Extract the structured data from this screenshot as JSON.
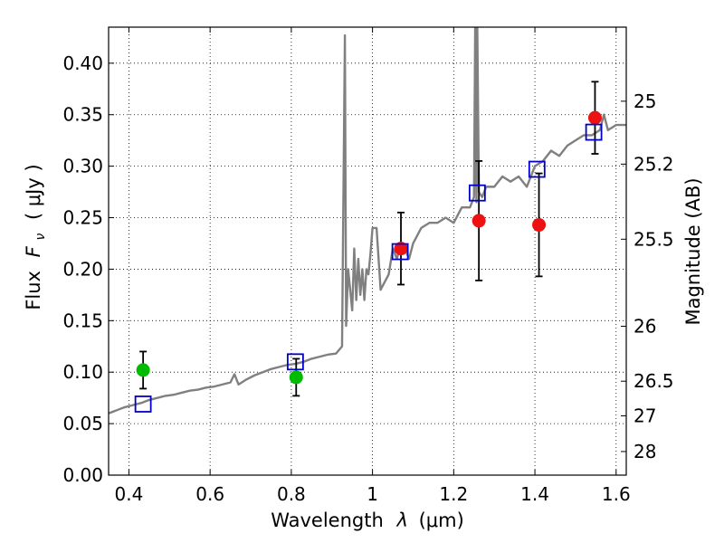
{
  "chart_data": {
    "type": "scatter",
    "xlabel_text": "Wavelength",
    "xlabel_symbol": "λ",
    "xlabel_unit": "(μm)",
    "ylabel_text": "Flux",
    "ylabel_symbol": "F",
    "ylabel_sub": "ν",
    "ylabel_unit": "( μJy )",
    "y2label": "Magnitude (AB)",
    "xlim": [
      0.35,
      1.625
    ],
    "ylim": [
      0.0,
      0.435
    ],
    "x_ticks": [
      0.4,
      0.6,
      0.8,
      1.0,
      1.2,
      1.4,
      1.6
    ],
    "x_tick_labels": [
      "0.4",
      "0.6",
      "0.8",
      "1",
      "1.2",
      "1.4",
      "1.6"
    ],
    "y_ticks": [
      0.0,
      0.05,
      0.1,
      0.15,
      0.2,
      0.25,
      0.3,
      0.35,
      0.4
    ],
    "y_tick_labels": [
      "0.00",
      "0.05",
      "0.10",
      "0.15",
      "0.20",
      "0.25",
      "0.30",
      "0.35",
      "0.40"
    ],
    "mag_ticks": [
      25,
      25.2,
      25.5,
      26,
      26.5,
      27,
      28
    ],
    "mag_tick_labels": [
      "25",
      "25.2",
      "25.5",
      "26",
      "26.5",
      "27",
      "28"
    ],
    "grid": true,
    "colors": {
      "spectrum": "#808080",
      "green_points": "#00bb00",
      "red_points": "#ee1111",
      "model_squares": "#0000cc",
      "errorbars": "#000000"
    },
    "series": [
      {
        "kind": "line",
        "x": [
          0.35,
          0.37,
          0.39,
          0.41,
          0.43,
          0.45,
          0.47,
          0.49,
          0.51,
          0.53,
          0.55,
          0.57,
          0.59,
          0.61,
          0.63,
          0.65,
          0.66,
          0.67,
          0.69,
          0.71,
          0.73,
          0.75,
          0.77,
          0.79,
          0.81,
          0.83,
          0.85,
          0.87,
          0.89,
          0.91,
          0.925,
          0.932,
          0.935,
          0.94,
          0.95,
          0.955,
          0.96,
          0.965,
          0.97,
          0.975,
          0.98,
          0.985,
          0.99,
          0.995,
          1.0,
          1.01,
          1.02,
          1.04,
          1.05,
          1.06,
          1.07,
          1.08,
          1.09,
          1.1,
          1.12,
          1.14,
          1.16,
          1.18,
          1.2,
          1.22,
          1.24,
          1.25,
          1.253,
          1.256,
          1.258,
          1.262,
          1.27,
          1.28,
          1.3,
          1.32,
          1.34,
          1.36,
          1.38,
          1.4,
          1.42,
          1.44,
          1.46,
          1.48,
          1.5,
          1.52,
          1.54,
          1.56,
          1.57,
          1.58,
          1.6,
          1.625
        ],
        "y": [
          0.06,
          0.063,
          0.066,
          0.068,
          0.07,
          0.073,
          0.075,
          0.077,
          0.078,
          0.08,
          0.082,
          0.083,
          0.085,
          0.086,
          0.088,
          0.09,
          0.098,
          0.088,
          0.093,
          0.097,
          0.1,
          0.103,
          0.105,
          0.107,
          0.108,
          0.11,
          0.113,
          0.115,
          0.117,
          0.118,
          0.125,
          0.427,
          0.145,
          0.2,
          0.16,
          0.22,
          0.17,
          0.21,
          0.175,
          0.2,
          0.17,
          0.2,
          0.195,
          0.215,
          0.24,
          0.24,
          0.18,
          0.195,
          0.22,
          0.21,
          0.225,
          0.22,
          0.21,
          0.225,
          0.24,
          0.245,
          0.245,
          0.25,
          0.245,
          0.26,
          0.26,
          0.27,
          0.44,
          0.265,
          0.44,
          0.275,
          0.27,
          0.28,
          0.28,
          0.29,
          0.285,
          0.29,
          0.28,
          0.3,
          0.305,
          0.315,
          0.31,
          0.32,
          0.325,
          0.33,
          0.33,
          0.335,
          0.35,
          0.335,
          0.34,
          0.34
        ]
      },
      {
        "kind": "points",
        "marker": "circle",
        "color_key": "green_points",
        "points": [
          {
            "x": 0.435,
            "y": 0.102,
            "err": 0.018
          },
          {
            "x": 0.812,
            "y": 0.095,
            "err": 0.018
          }
        ]
      },
      {
        "kind": "points",
        "marker": "circle",
        "color_key": "red_points",
        "points": [
          {
            "x": 1.07,
            "y": 0.22,
            "err": 0.035
          },
          {
            "x": 1.262,
            "y": 0.247,
            "err": 0.058
          },
          {
            "x": 1.41,
            "y": 0.243,
            "err": 0.05
          },
          {
            "x": 1.548,
            "y": 0.347,
            "err": 0.035
          }
        ]
      },
      {
        "kind": "points",
        "marker": "square",
        "color_key": "model_squares",
        "points": [
          {
            "x": 0.435,
            "y": 0.069
          },
          {
            "x": 0.81,
            "y": 0.11
          },
          {
            "x": 1.068,
            "y": 0.217
          },
          {
            "x": 1.258,
            "y": 0.274
          },
          {
            "x": 1.405,
            "y": 0.297
          },
          {
            "x": 1.545,
            "y": 0.333
          }
        ]
      }
    ]
  }
}
